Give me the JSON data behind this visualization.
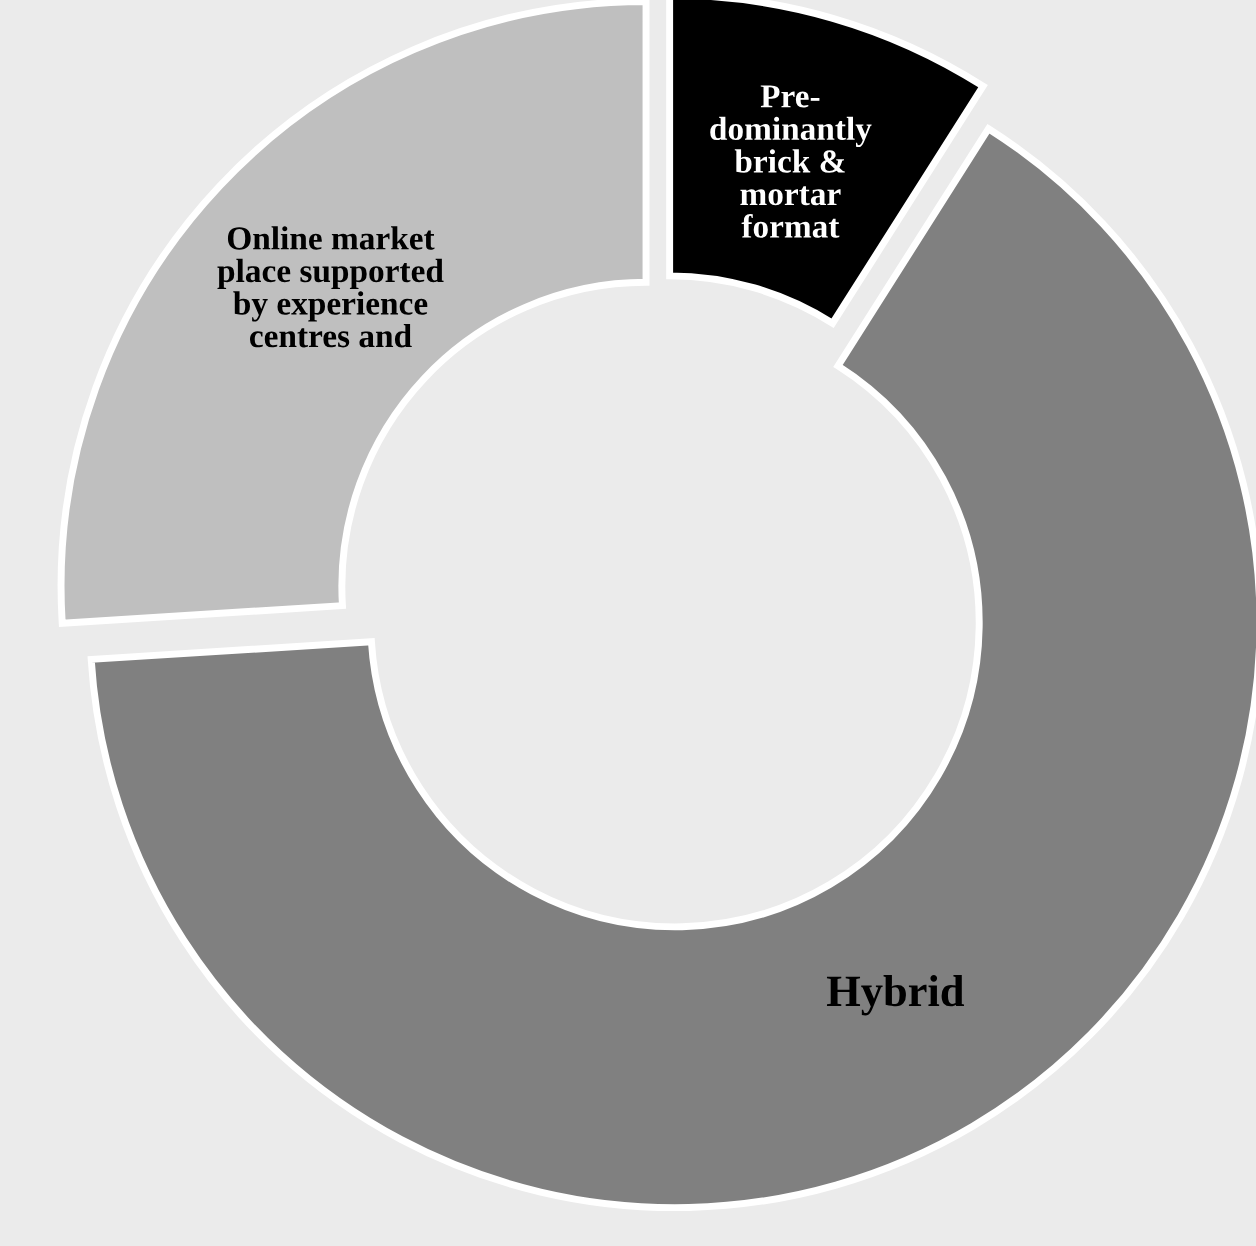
{
  "chart_data": {
    "type": "donut",
    "categories": [
      "Pre-\ndominantly\nbrick &\nmortar\nformat",
      "Hybrid",
      "Online market\nplace supported\nby experience\ncentres and"
    ],
    "values": [
      9,
      65,
      26
    ],
    "colors": [
      "#000000",
      "#808080",
      "#bfbfbf"
    ],
    "legend": false
  }
}
